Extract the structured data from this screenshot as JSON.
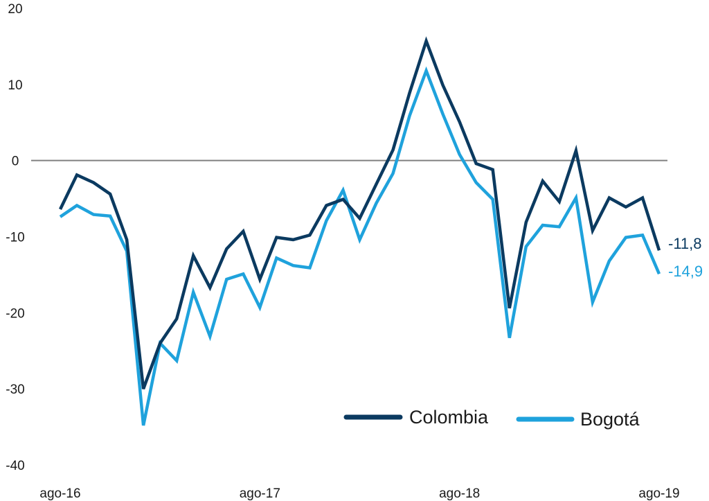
{
  "chart_data": {
    "type": "line",
    "title": "",
    "xlabel": "",
    "ylabel": "",
    "ylim": [
      -40,
      20
    ],
    "yticks": [
      "20",
      "10",
      "0",
      "-10",
      "-20",
      "-30",
      "-40"
    ],
    "xtick_labels": [
      "ago-16",
      "ago-17",
      "ago-18",
      "ago-19"
    ],
    "xtick_months": [
      0,
      12,
      24,
      36
    ],
    "zero_line_color": "#808080",
    "legend_position": "bottom-right",
    "series": [
      {
        "name": "Colombia",
        "color": "#0b3a60",
        "end_label": "-11,8",
        "values": [
          -6.4,
          -1.9,
          -2.9,
          -4.4,
          -10.4,
          -30.0,
          -24.0,
          -20.8,
          -12.5,
          -16.7,
          -11.6,
          -9.3,
          -15.6,
          -10.1,
          -10.4,
          -9.8,
          -5.9,
          -5.1,
          -7.6,
          -3.1,
          1.4,
          8.9,
          15.7,
          9.9,
          5.1,
          -0.4,
          -1.2,
          -19.4,
          -8.1,
          -2.7,
          -5.4,
          1.3,
          -9.2,
          -4.9,
          -6.1,
          -4.9,
          -11.8
        ]
      },
      {
        "name": "Bogotá",
        "color": "#1fa2dc",
        "end_label": "-14,9",
        "values": [
          -7.4,
          -5.9,
          -7.1,
          -7.3,
          -11.9,
          -34.8,
          -24.0,
          -26.3,
          -17.3,
          -23.1,
          -15.6,
          -14.9,
          -19.3,
          -12.8,
          -13.8,
          -14.1,
          -7.9,
          -3.9,
          -10.4,
          -5.6,
          -1.7,
          5.9,
          11.8,
          6.1,
          0.8,
          -2.9,
          -5.1,
          -23.3,
          -11.3,
          -8.5,
          -8.7,
          -4.9,
          -18.6,
          -13.2,
          -10.1,
          -9.8,
          -14.9
        ]
      }
    ]
  }
}
